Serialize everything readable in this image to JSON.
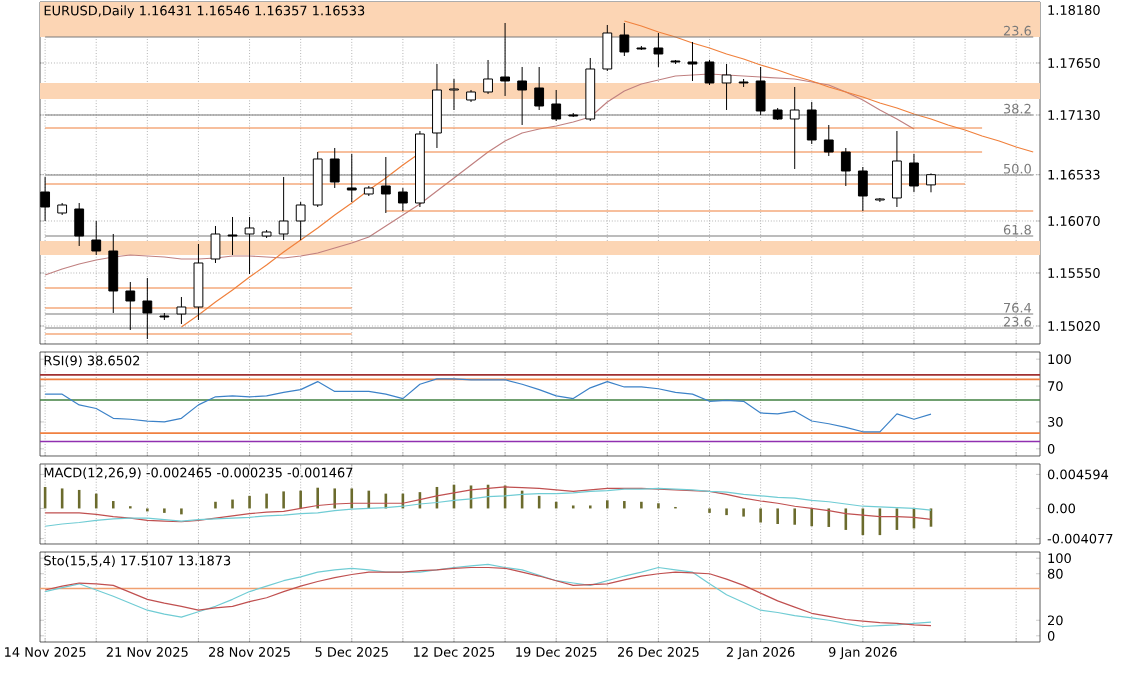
{
  "chart_data": [
    {
      "type": "candlestick",
      "title": "EURUSD,Daily 1.16431 1.16546 1.16357 1.16533",
      "categories": [
        null,
        null,
        null,
        null,
        null,
        null,
        null,
        null,
        null,
        null,
        null,
        null,
        null,
        null,
        null,
        null,
        null,
        null,
        null,
        null,
        null,
        null,
        null,
        null,
        null,
        null,
        null,
        null,
        null,
        null,
        null,
        null,
        null,
        null,
        null,
        null,
        null,
        null,
        null,
        null,
        null,
        null,
        null,
        null,
        null,
        null,
        null,
        null,
        null,
        null,
        null,
        null,
        null,
        null,
        null,
        null,
        null,
        null,
        null
      ],
      "ohlc": [
        [
          1.1636,
          1.1651,
          1.1607,
          1.1621
        ],
        [
          1.1615,
          1.1625,
          1.1613,
          1.1623
        ],
        [
          1.1619,
          1.1625,
          1.1582,
          1.1592
        ],
        [
          1.1588,
          1.1607,
          1.1573,
          1.1577
        ],
        [
          1.1577,
          1.1594,
          1.1515,
          1.1537
        ],
        [
          1.1537,
          1.1546,
          1.1498,
          1.1527
        ],
        [
          1.1527,
          1.155,
          1.1489,
          1.1515
        ],
        [
          1.1512,
          1.1515,
          1.1508,
          1.1511
        ],
        [
          1.1514,
          1.1531,
          1.1504,
          1.1521
        ],
        [
          1.1521,
          1.1584,
          1.1508,
          1.1565
        ],
        [
          1.1569,
          1.1602,
          1.1565,
          1.1594
        ],
        [
          1.1593,
          1.1611,
          1.1573,
          1.1592
        ],
        [
          1.1594,
          1.1611,
          1.1554,
          1.16
        ],
        [
          1.1592,
          1.1598,
          1.159,
          1.1596
        ],
        [
          1.1594,
          1.1651,
          1.1588,
          1.1607
        ],
        [
          1.1607,
          1.1626,
          1.1588,
          1.1623
        ],
        [
          1.1623,
          1.1676,
          1.1621,
          1.1669
        ],
        [
          1.1669,
          1.168,
          1.164,
          1.1646
        ],
        [
          1.164,
          1.1674,
          1.1626,
          1.1638
        ],
        [
          1.1634,
          1.1642,
          1.1632,
          1.164
        ],
        [
          1.1642,
          1.1671,
          1.1615,
          1.1634
        ],
        [
          1.1636,
          1.164,
          1.1617,
          1.1625
        ],
        [
          1.1625,
          1.1697,
          1.1621,
          1.1694
        ],
        [
          1.1695,
          1.1764,
          1.168,
          1.1738
        ],
        [
          1.1738,
          1.1749,
          1.1718,
          1.1739
        ],
        [
          1.1728,
          1.1738,
          1.1726,
          1.1736
        ],
        [
          1.1736,
          1.1768,
          1.1734,
          1.1749
        ],
        [
          1.1751,
          1.1805,
          1.1732,
          1.1747
        ],
        [
          1.1747,
          1.1761,
          1.1703,
          1.1738
        ],
        [
          1.174,
          1.1761,
          1.1718,
          1.1722
        ],
        [
          1.1724,
          1.1738,
          1.1707,
          1.1709
        ],
        [
          1.1713,
          1.1715,
          1.1711,
          1.1712
        ],
        [
          1.1709,
          1.177,
          1.1707,
          1.1759
        ],
        [
          1.1759,
          1.1803,
          1.1757,
          1.1795
        ],
        [
          1.1793,
          1.1805,
          1.1772,
          1.1776
        ],
        [
          1.178,
          1.1782,
          1.1778,
          1.1779
        ],
        [
          1.178,
          1.1795,
          1.1761,
          1.1774
        ],
        [
          1.1767,
          1.1768,
          1.1764,
          1.1766
        ],
        [
          1.1766,
          1.1786,
          1.1747,
          1.1764
        ],
        [
          1.1766,
          1.1768,
          1.1743,
          1.1745
        ],
        [
          1.1745,
          1.1764,
          1.1718,
          1.1753
        ],
        [
          1.1746,
          1.1749,
          1.1741,
          1.1745
        ],
        [
          1.1747,
          1.1761,
          1.1713,
          1.1717
        ],
        [
          1.1718,
          1.172,
          1.1708,
          1.1709
        ],
        [
          1.1709,
          1.1741,
          1.1659,
          1.1718
        ],
        [
          1.1718,
          1.1726,
          1.1684,
          1.1688
        ],
        [
          1.1688,
          1.1703,
          1.1672,
          1.1676
        ],
        [
          1.1676,
          1.168,
          1.1642,
          1.1657
        ],
        [
          1.1657,
          1.1661,
          1.1617,
          1.1632
        ],
        [
          1.1628,
          1.163,
          1.1626,
          1.1629
        ],
        [
          1.163,
          1.1697,
          1.1621,
          1.1667
        ],
        [
          1.1665,
          1.1674,
          1.1636,
          1.1642
        ],
        [
          1.16431,
          1.16546,
          1.16357,
          1.16533
        ],
        null,
        null,
        null,
        null,
        null,
        null
      ],
      "series": [
        {
          "type": "line",
          "color": "#c08080",
          "values": [
            1.1553,
            1.1559,
            1.1564,
            1.1568,
            1.1571,
            1.1573,
            1.1572,
            1.1571,
            1.1569,
            1.1569,
            1.157,
            1.1572,
            1.1572,
            1.1571,
            1.157,
            1.1572,
            1.1575,
            1.158,
            1.1585,
            1.1591,
            1.1602,
            1.1613,
            1.1624,
            1.1637,
            1.165,
            1.1663,
            1.1676,
            1.1687,
            1.1695,
            1.1699,
            1.1702,
            1.1706,
            1.1711,
            1.1726,
            1.1737,
            1.1744,
            1.1748,
            1.1752,
            1.1753,
            1.1754,
            1.1753,
            1.1752,
            1.1751,
            1.175,
            1.1749,
            1.1746,
            1.1743,
            1.1736,
            1.1728,
            1.1718,
            1.1709,
            1.1699,
            null,
            null,
            null,
            null,
            null,
            null,
            null
          ]
        },
        {
          "type": "line",
          "color": "#f0803c",
          "values": [
            null,
            null,
            null,
            null,
            null,
            null,
            null,
            null,
            1.1501,
            1.1513,
            1.1526,
            1.1538,
            1.1551,
            1.1563,
            1.1576,
            1.1588,
            1.16,
            1.1613,
            1.1625,
            1.1638,
            1.165,
            1.1663,
            1.1675,
            null,
            null,
            null,
            null,
            null,
            null,
            null,
            null,
            null,
            null,
            null,
            null,
            null,
            null,
            null,
            null,
            null,
            null,
            null,
            null,
            null,
            null,
            null,
            null,
            null,
            null,
            null,
            null,
            null,
            null,
            null,
            null,
            null,
            null,
            null,
            null
          ]
        },
        {
          "type": "line",
          "color": "#f0803c",
          "values": [
            null,
            null,
            null,
            null,
            null,
            null,
            null,
            null,
            null,
            null,
            null,
            null,
            null,
            null,
            null,
            null,
            null,
            null,
            null,
            null,
            null,
            null,
            null,
            null,
            null,
            null,
            null,
            null,
            null,
            null,
            null,
            null,
            null,
            null,
            1.1807,
            1.1802,
            1.1796,
            1.1791,
            1.1785,
            1.178,
            1.1774,
            1.1769,
            1.1763,
            1.1758,
            1.1752,
            1.1747,
            1.1741,
            1.1736,
            1.1731,
            1.1725,
            1.172,
            1.1714,
            1.1709,
            1.1703,
            1.1698,
            1.1692,
            1.1687,
            1.1681,
            1.1676
          ]
        },
        {
          "type": "line",
          "color": "#f0803c",
          "values": [
            1.17,
            1.17,
            1.17,
            1.17,
            1.17,
            1.17,
            1.17,
            1.17,
            1.17,
            1.17,
            1.17,
            1.17,
            1.17,
            1.17,
            1.17,
            1.17,
            1.17,
            1.17,
            1.17,
            1.17,
            1.17,
            1.17,
            1.17,
            1.17,
            1.17,
            1.17,
            1.17,
            1.17,
            1.17,
            1.17,
            1.17,
            1.17,
            1.17,
            1.17,
            1.17,
            1.17,
            1.17,
            1.17,
            1.17,
            1.17,
            1.17,
            1.17,
            1.17,
            1.17,
            1.17,
            1.17,
            1.17,
            1.17,
            1.17,
            1.17,
            1.17,
            1.17,
            1.17,
            1.17,
            1.17,
            1.17,
            null,
            null,
            null
          ]
        },
        {
          "type": "line",
          "color": "#f0803c",
          "values": [
            null,
            null,
            null,
            null,
            null,
            null,
            null,
            null,
            null,
            null,
            null,
            null,
            null,
            null,
            null,
            null,
            1.1676,
            1.1676,
            1.1676,
            1.1676,
            1.1676,
            1.1676,
            1.1676,
            1.1676,
            1.1676,
            1.1676,
            1.1676,
            1.1676,
            1.1676,
            1.1676,
            1.1676,
            1.1676,
            1.1676,
            1.1676,
            1.1676,
            1.1676,
            1.1676,
            1.1676,
            1.1676,
            1.1676,
            1.1676,
            1.1676,
            1.1676,
            1.1676,
            1.1676,
            1.1676,
            1.1676,
            1.1676,
            1.1676,
            1.1676,
            1.1676,
            1.1676,
            1.1676,
            1.1676,
            1.1676,
            1.1676,
            null,
            null,
            null
          ]
        },
        {
          "type": "line",
          "color": "#f0803c",
          "values": [
            1.1644,
            1.1644,
            1.1644,
            1.1644,
            1.1644,
            1.1644,
            1.1644,
            1.1644,
            1.1644,
            1.1644,
            1.1644,
            1.1644,
            1.1644,
            1.1644,
            1.1644,
            1.1644,
            1.1644,
            1.1644,
            1.1644,
            1.1644,
            1.1644,
            1.1644,
            1.1644,
            1.1644,
            1.1644,
            1.1644,
            1.1644,
            1.1644,
            1.1644,
            1.1644,
            1.1644,
            1.1644,
            1.1644,
            1.1644,
            1.1644,
            1.1644,
            1.1644,
            1.1644,
            1.1644,
            1.1644,
            1.1644,
            1.1644,
            1.1644,
            1.1644,
            1.1644,
            1.1644,
            1.1644,
            1.1644,
            1.1644,
            1.1644,
            1.1644,
            1.1644,
            1.1644,
            1.1644,
            1.1644,
            null,
            null,
            null,
            null
          ]
        },
        {
          "type": "line",
          "color": "#f0803c",
          "values": [
            null,
            null,
            null,
            null,
            null,
            null,
            null,
            null,
            null,
            null,
            null,
            null,
            null,
            null,
            null,
            null,
            null,
            null,
            null,
            null,
            1.1617,
            1.1617,
            1.1617,
            1.1617,
            1.1617,
            1.1617,
            1.1617,
            1.1617,
            1.1617,
            1.1617,
            1.1617,
            1.1617,
            1.1617,
            1.1617,
            1.1617,
            1.1617,
            1.1617,
            1.1617,
            1.1617,
            1.1617,
            1.1617,
            1.1617,
            1.1617,
            1.1617,
            1.1617,
            1.1617,
            1.1617,
            1.1617,
            1.1617,
            1.1617,
            1.1617,
            1.1617,
            1.1617,
            1.1617,
            1.1617,
            1.1617,
            1.1617,
            1.1617,
            1.1617
          ]
        },
        {
          "type": "line",
          "color": "#f0803c",
          "values": [
            1.154,
            1.154,
            1.154,
            1.154,
            1.154,
            1.154,
            1.154,
            1.154,
            1.154,
            1.154,
            1.154,
            1.154,
            1.154,
            1.154,
            1.154,
            1.154,
            1.154,
            1.154,
            1.154,
            null,
            null,
            null,
            null,
            null,
            null,
            null,
            null,
            null,
            null,
            null,
            null,
            null,
            null,
            null,
            null,
            null,
            null,
            null,
            null,
            null,
            null,
            null,
            null,
            null,
            null,
            null,
            null,
            null,
            null,
            null,
            null,
            null,
            null,
            null,
            null,
            null,
            null,
            null,
            null
          ]
        },
        {
          "type": "line",
          "color": "#f0803c",
          "values": [
            1.152,
            1.152,
            1.152,
            1.152,
            1.152,
            1.152,
            1.152,
            1.152,
            1.152,
            1.152,
            1.152,
            1.152,
            1.152,
            1.152,
            1.152,
            1.152,
            1.152,
            1.152,
            1.152,
            null,
            null,
            null,
            null,
            null,
            null,
            null,
            null,
            null,
            null,
            null,
            null,
            null,
            null,
            null,
            null,
            null,
            null,
            null,
            null,
            null,
            null,
            null,
            null,
            null,
            null,
            null,
            null,
            null,
            null,
            null,
            null,
            null,
            null,
            null,
            null,
            null,
            null,
            null,
            null
          ]
        },
        {
          "type": "line",
          "color": "#f0803c",
          "values": [
            1.1494,
            1.1494,
            1.1494,
            1.1494,
            1.1494,
            1.1494,
            1.1494,
            1.1494,
            1.1494,
            1.1494,
            1.1494,
            1.1494,
            1.1494,
            1.1494,
            1.1494,
            1.1494,
            1.1494,
            1.1494,
            1.1494,
            null,
            null,
            null,
            null,
            null,
            null,
            null,
            null,
            null,
            null,
            null,
            null,
            null,
            null,
            null,
            null,
            null,
            null,
            null,
            null,
            null,
            null,
            null,
            null,
            null,
            null,
            null,
            null,
            null,
            null,
            null,
            null,
            null,
            null,
            null,
            null,
            null,
            null,
            null,
            null
          ]
        },
        {
          "type": "line",
          "name": "23.6",
          "color": "#7a7a7a",
          "values": [
            1.1791,
            1.1791,
            1.1791,
            1.1791,
            1.1791,
            1.1791,
            1.1791,
            1.1791,
            1.1791,
            1.1791,
            1.1791,
            1.1791,
            1.1791,
            1.1791,
            1.1791,
            1.1791,
            1.1791,
            1.1791,
            1.1791,
            1.1791,
            1.1791,
            1.1791,
            1.1791,
            1.1791,
            1.1791,
            1.1791,
            1.1791,
            1.1791,
            1.1791,
            1.1791,
            1.1791,
            1.1791,
            1.1791,
            1.1791,
            1.1791,
            1.1791,
            1.1791,
            1.1791,
            1.1791,
            1.1791,
            1.1791,
            1.1791,
            1.1791,
            1.1791,
            1.1791,
            1.1791,
            1.1791,
            1.1791,
            1.1791,
            1.1791,
            1.1791,
            1.1791,
            1.1791,
            1.1791,
            1.1791,
            1.1791,
            1.1791,
            1.1791,
            1.1791
          ]
        },
        {
          "type": "line",
          "name": "38.2",
          "color": "#7a7a7a",
          "values": [
            1.1713,
            1.1713,
            1.1713,
            1.1713,
            1.1713,
            1.1713,
            1.1713,
            1.1713,
            1.1713,
            1.1713,
            1.1713,
            1.1713,
            1.1713,
            1.1713,
            1.1713,
            1.1713,
            1.1713,
            1.1713,
            1.1713,
            1.1713,
            1.1713,
            1.1713,
            1.1713,
            1.1713,
            1.1713,
            1.1713,
            1.1713,
            1.1713,
            1.1713,
            1.1713,
            1.1713,
            1.1713,
            1.1713,
            1.1713,
            1.1713,
            1.1713,
            1.1713,
            1.1713,
            1.1713,
            1.1713,
            1.1713,
            1.1713,
            1.1713,
            1.1713,
            1.1713,
            1.1713,
            1.1713,
            1.1713,
            1.1713,
            1.1713,
            1.1713,
            1.1713,
            1.1713,
            1.1713,
            1.1713,
            1.1713,
            1.1713,
            1.1713,
            1.1713
          ]
        },
        {
          "type": "line",
          "name": "50.0",
          "color": "#7a7a7a",
          "values": [
            1.1653,
            1.1653,
            1.1653,
            1.1653,
            1.1653,
            1.1653,
            1.1653,
            1.1653,
            1.1653,
            1.1653,
            1.1653,
            1.1653,
            1.1653,
            1.1653,
            1.1653,
            1.1653,
            1.1653,
            1.1653,
            1.1653,
            1.1653,
            1.1653,
            1.1653,
            1.1653,
            1.1653,
            1.1653,
            1.1653,
            1.1653,
            1.1653,
            1.1653,
            1.1653,
            1.1653,
            1.1653,
            1.1653,
            1.1653,
            1.1653,
            1.1653,
            1.1653,
            1.1653,
            1.1653,
            1.1653,
            1.1653,
            1.1653,
            1.1653,
            1.1653,
            1.1653,
            1.1653,
            1.1653,
            1.1653,
            1.1653,
            1.1653,
            1.1653,
            1.1653,
            1.1653,
            1.1653,
            1.1653,
            1.1653,
            1.1653,
            1.1653,
            1.1653
          ]
        },
        {
          "type": "line",
          "name": "61.8",
          "color": "#7a7a7a",
          "values": [
            1.1592,
            1.1592,
            1.1592,
            1.1592,
            1.1592,
            1.1592,
            1.1592,
            1.1592,
            1.1592,
            1.1592,
            1.1592,
            1.1592,
            1.1592,
            1.1592,
            1.1592,
            1.1592,
            1.1592,
            1.1592,
            1.1592,
            1.1592,
            1.1592,
            1.1592,
            1.1592,
            1.1592,
            1.1592,
            1.1592,
            1.1592,
            1.1592,
            1.1592,
            1.1592,
            1.1592,
            1.1592,
            1.1592,
            1.1592,
            1.1592,
            1.1592,
            1.1592,
            1.1592,
            1.1592,
            1.1592,
            1.1592,
            1.1592,
            1.1592,
            1.1592,
            1.1592,
            1.1592,
            1.1592,
            1.1592,
            1.1592,
            1.1592,
            1.1592,
            1.1592,
            1.1592,
            1.1592,
            1.1592,
            1.1592,
            1.1592,
            1.1592,
            1.1592
          ]
        },
        {
          "type": "line",
          "name": "76.4",
          "color": "#7a7a7a",
          "values": [
            1.1514,
            1.1514,
            1.1514,
            1.1514,
            1.1514,
            1.1514,
            1.1514,
            1.1514,
            1.1514,
            1.1514,
            1.1514,
            1.1514,
            1.1514,
            1.1514,
            1.1514,
            1.1514,
            1.1514,
            1.1514,
            1.1514,
            1.1514,
            1.1514,
            1.1514,
            1.1514,
            1.1514,
            1.1514,
            1.1514,
            1.1514,
            1.1514,
            1.1514,
            1.1514,
            1.1514,
            1.1514,
            1.1514,
            1.1514,
            1.1514,
            1.1514,
            1.1514,
            1.1514,
            1.1514,
            1.1514,
            1.1514,
            1.1514,
            1.1514,
            1.1514,
            1.1514,
            1.1514,
            1.1514,
            1.1514,
            1.1514,
            1.1514,
            1.1514,
            1.1514,
            1.1514,
            1.1514,
            1.1514,
            1.1514,
            1.1514,
            1.1514,
            1.1514
          ]
        },
        {
          "type": "line",
          "name": "23.6",
          "color": "#7a7a7a",
          "values": [
            1.15,
            1.15,
            1.15,
            1.15,
            1.15,
            1.15,
            1.15,
            1.15,
            1.15,
            1.15,
            1.15,
            1.15,
            1.15,
            1.15,
            1.15,
            1.15,
            1.15,
            1.15,
            1.15,
            1.15,
            1.15,
            1.15,
            1.15,
            1.15,
            1.15,
            1.15,
            1.15,
            1.15,
            1.15,
            1.15,
            1.15,
            1.15,
            1.15,
            1.15,
            1.15,
            1.15,
            1.15,
            1.15,
            1.15,
            1.15,
            1.15,
            1.15,
            1.15,
            1.15,
            1.15,
            1.15,
            1.15,
            1.15,
            1.15,
            1.15,
            1.15,
            1.15,
            1.15,
            1.15,
            1.15,
            1.15,
            1.15,
            1.15,
            1.15
          ]
        }
      ],
      "bands": [
        {
          "axis": "y",
          "from": 1.1791,
          "to": 1.1826,
          "color": "#fcd5b4"
        },
        {
          "axis": "y",
          "from": 1.1729,
          "to": 1.1745,
          "color": "#fcd5b4"
        },
        {
          "axis": "y",
          "from": 1.1573,
          "to": 1.1587,
          "color": "#fcd5b4"
        }
      ],
      "ylim": [
        1.1484,
        1.1826
      ],
      "yticks": [
        {
          "value": 1.1818,
          "label": "1.18180"
        },
        {
          "value": 1.1765,
          "label": "1.17650"
        },
        {
          "value": 1.1713,
          "label": "1.17130"
        },
        {
          "value": 1.16533,
          "label": "1.16533"
        },
        {
          "value": 1.1607,
          "label": "1.16070"
        },
        {
          "value": 1.1555,
          "label": "1.15550"
        },
        {
          "value": 1.1502,
          "label": "1.15020"
        }
      ],
      "tick_labels": "y",
      "grid": true,
      "legend": "right"
    },
    {
      "type": "line",
      "title": "RSI(9) 38.6502",
      "categories": [
        null,
        null,
        null,
        null,
        null,
        null,
        null,
        null,
        null,
        null,
        null,
        null,
        null,
        null,
        null,
        null,
        null,
        null,
        null,
        null,
        null,
        null,
        null,
        null,
        null,
        null,
        null,
        null,
        null,
        null,
        null,
        null,
        null,
        null,
        null,
        null,
        null,
        null,
        null,
        null,
        null,
        null,
        null,
        null,
        null,
        null,
        null,
        null,
        null,
        null,
        null,
        null,
        null,
        null,
        null,
        null,
        null,
        null,
        null
      ],
      "series": [
        {
          "color": "#3c82c8",
          "values": [
            61,
            61,
            49,
            45,
            34,
            33,
            31,
            30,
            34,
            49,
            58,
            59,
            58,
            59,
            63,
            66,
            75,
            64,
            64,
            64,
            61,
            56,
            72,
            78,
            78,
            77,
            77,
            77,
            72,
            66,
            59,
            56,
            68,
            75,
            69,
            69,
            67,
            63,
            61,
            53,
            54,
            53,
            40,
            39,
            42,
            31,
            28,
            24,
            19,
            19,
            39,
            33,
            38.6502,
            null,
            null,
            null,
            null,
            null,
            null
          ]
        }
      ],
      "ref_lines": [
        {
          "axis": "y",
          "value": 82.5,
          "color": "#a03030"
        },
        {
          "axis": "y",
          "value": 77.5,
          "color": "#f08040"
        },
        {
          "axis": "y",
          "value": 54.4,
          "color": "#408040"
        },
        {
          "axis": "y",
          "value": 17.5,
          "color": "#f08040"
        },
        {
          "axis": "y",
          "value": 8.1,
          "color": "#9030b0"
        }
      ],
      "ylim": [
        -8,
        108
      ],
      "yticks": [
        0,
        30,
        70,
        100
      ],
      "tick_labels": "y",
      "grid": "x"
    },
    {
      "type": "bar",
      "title": "MACD(12,26,9) -0.002465 -0.000235 -0.001467",
      "categories": [
        null,
        null,
        null,
        null,
        null,
        null,
        null,
        null,
        null,
        null,
        null,
        null,
        null,
        null,
        null,
        null,
        null,
        null,
        null,
        null,
        null,
        null,
        null,
        null,
        null,
        null,
        null,
        null,
        null,
        null,
        null,
        null,
        null,
        null,
        null,
        null,
        null,
        null,
        null,
        null,
        null,
        null,
        null,
        null,
        null,
        null,
        null,
        null,
        null,
        null,
        null,
        null,
        null,
        null,
        null,
        null,
        null,
        null,
        null
      ],
      "series": [
        {
          "type": "bar",
          "color": "#6b6b2d",
          "values": [
            0.0029,
            0.0027,
            0.0025,
            0.002,
            0.001,
            0.0003,
            -0.0004,
            -0.0006,
            -0.0008,
            0,
            0.0009,
            0.0012,
            0.0017,
            0.002,
            0.0023,
            0.0024,
            0.0028,
            0.0027,
            0.0027,
            0.0024,
            0.002,
            0.002,
            0.0022,
            0.0029,
            0.0032,
            0.0031,
            0.0032,
            0.0031,
            0.0024,
            0.0017,
            0.0009,
            0.0004,
            0.0004,
            0.0011,
            0.001,
            0.0009,
            0.0007,
            0.0002,
            0,
            -0.0006,
            -0.0009,
            -0.0011,
            -0.0019,
            -0.0021,
            -0.0022,
            -0.0024,
            -0.0025,
            -0.0029,
            -0.0036,
            -0.0036,
            -0.0029,
            -0.0027,
            -0.002465,
            null,
            null,
            null,
            null,
            null,
            null
          ]
        },
        {
          "type": "line",
          "color": "#c05050",
          "values": [
            -0.0006,
            -0.0006,
            -0.0006,
            -0.0008,
            -0.0011,
            -0.0013,
            -0.0016,
            -0.0017,
            -0.0018,
            -0.0016,
            -0.0013,
            -0.001,
            -0.0007,
            -0.0005,
            -0.0004,
            0,
            0.0004,
            0.0006,
            0.0007,
            0.0007,
            0.0007,
            0.0007,
            0.0012,
            0.0017,
            0.0021,
            0.0025,
            0.0027,
            0.0029,
            0.0028,
            0.0027,
            0.0025,
            0.0023,
            0.0025,
            0.0027,
            0.0027,
            0.0027,
            0.0026,
            0.0025,
            0.0024,
            0.0023,
            0.0019,
            0.0014,
            0.001,
            0.0007,
            0.0003,
            0,
            -0.0003,
            -0.0007,
            -0.0009,
            -0.0011,
            -0.0011,
            -0.0012,
            -0.001467,
            null,
            null,
            null,
            null,
            null,
            null
          ]
        },
        {
          "type": "line",
          "color": "#70ccd4",
          "values": [
            -0.0024,
            -0.0021,
            -0.0019,
            -0.0016,
            -0.0014,
            -0.0013,
            -0.0013,
            -0.0015,
            -0.0017,
            -0.0015,
            -0.0014,
            -0.0013,
            -0.0012,
            -0.001,
            -0.0009,
            -0.0007,
            -0.0006,
            -0.0003,
            -0.0001,
            0,
            0.0001,
            0.0003,
            0.0006,
            0.0008,
            0.0011,
            0.0013,
            0.0016,
            0.0017,
            0.0019,
            0.002,
            0.002,
            0.0021,
            0.0023,
            0.0024,
            0.0026,
            0.0026,
            0.0027,
            0.0026,
            0.0025,
            0.0023,
            0.0022,
            0.0019,
            0.0017,
            0.0015,
            0.0014,
            0.0011,
            0.0009,
            0.0006,
            0.0003,
            0.0002,
            0.0001,
            0,
            -0.000235,
            null,
            null,
            null,
            null,
            null,
            null
          ]
        }
      ],
      "ylim": [
        -0.0048,
        0.006
      ],
      "yticks": [
        {
          "value": 0.004594,
          "label": "0.004594"
        },
        {
          "value": 0,
          "label": "0.00"
        },
        {
          "value": -0.004077,
          "label": "-0.004077"
        }
      ],
      "tick_labels": "y",
      "grid": "x"
    },
    {
      "type": "line",
      "title": "Sto(15,5,4) 17.5107 13.1873",
      "categories": [
        "14 Nov 2025",
        null,
        null,
        null,
        null,
        null,
        "21 Nov 2025",
        null,
        null,
        null,
        null,
        null,
        "28 Nov 2025",
        null,
        null,
        null,
        null,
        null,
        "5 Dec 2025",
        null,
        null,
        null,
        null,
        null,
        "12 Dec 2025",
        null,
        null,
        null,
        null,
        null,
        "19 Dec 2025",
        null,
        null,
        null,
        null,
        null,
        "26 Dec 2025",
        null,
        null,
        null,
        null,
        null,
        "2 Jan 2026",
        null,
        null,
        null,
        null,
        null,
        "9 Jan 2026",
        null,
        null,
        null,
        null,
        null,
        null,
        null,
        null,
        null,
        null
      ],
      "series": [
        {
          "color": "#70ccd4",
          "values": [
            57,
            62,
            67,
            59,
            51,
            42,
            33,
            28,
            24,
            31,
            38,
            47,
            57,
            64,
            71,
            76,
            82,
            85,
            87,
            85,
            82,
            82,
            82,
            85,
            88,
            90,
            92,
            88,
            85,
            78,
            71,
            68,
            65,
            71,
            77,
            82,
            88,
            85,
            82,
            67,
            53,
            43,
            33,
            30,
            26,
            23,
            20,
            16,
            12,
            13,
            14,
            16,
            17.5107,
            null,
            null,
            null,
            null,
            null,
            null
          ]
        },
        {
          "color": "#c05050",
          "values": [
            59,
            64,
            68,
            67,
            65,
            56,
            47,
            42,
            38,
            33,
            36,
            38,
            44,
            49,
            57,
            64,
            70,
            75,
            79,
            82,
            82,
            82,
            84,
            85,
            87,
            88,
            88,
            87,
            82,
            77,
            71,
            65,
            66,
            67,
            72,
            77,
            80,
            82,
            81,
            80,
            73,
            65,
            55,
            45,
            37,
            29,
            25,
            21,
            19,
            17,
            16,
            14,
            13.1873,
            null,
            null,
            null,
            null,
            null,
            null
          ]
        }
      ],
      "ref_lines": [
        {
          "axis": "y",
          "value": 61,
          "color": "#f0a070"
        }
      ],
      "ylim": [
        -8,
        108
      ],
      "yticks": [
        0,
        20,
        80,
        100
      ],
      "grid": "x"
    }
  ]
}
